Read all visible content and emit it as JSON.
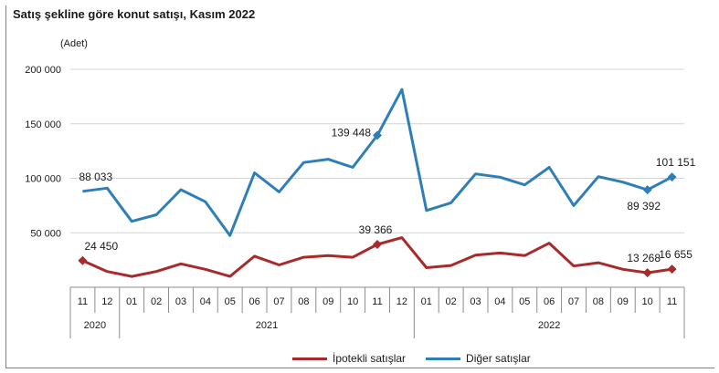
{
  "chart_data": {
    "type": "line",
    "title": "Satış şekline göre konut satışı, Kasım 2022",
    "ylabel": "(Adet)",
    "xlabel": "",
    "ylim": [
      0,
      200000
    ],
    "yticks": [
      {
        "value": 200000,
        "label": "200 000"
      },
      {
        "value": 150000,
        "label": "150 000"
      },
      {
        "value": 100000,
        "label": "100 000"
      },
      {
        "value": 50000,
        "label": "50 000"
      }
    ],
    "categories": [
      "11",
      "12",
      "01",
      "02",
      "03",
      "04",
      "05",
      "06",
      "07",
      "08",
      "09",
      "10",
      "11",
      "12",
      "01",
      "02",
      "03",
      "04",
      "05",
      "06",
      "07",
      "08",
      "09",
      "10",
      "11"
    ],
    "year_groups": [
      {
        "label": "2020",
        "start": 0,
        "end": 1
      },
      {
        "label": "2021",
        "start": 2,
        "end": 13
      },
      {
        "label": "2022",
        "start": 14,
        "end": 24
      }
    ],
    "series": [
      {
        "name": "İpotekli satışlar",
        "color": "#a82a2a",
        "values": [
          24450,
          14500,
          10000,
          14500,
          21500,
          16500,
          10000,
          28500,
          20500,
          27500,
          29000,
          27500,
          39366,
          45500,
          18000,
          20000,
          29500,
          31500,
          29000,
          40500,
          19500,
          22500,
          16500,
          13268,
          16655
        ],
        "marked": [
          0,
          12,
          23,
          24
        ],
        "labels": [
          {
            "index": 0,
            "text": "24 450"
          },
          {
            "index": 12,
            "text": "39 366"
          },
          {
            "index": 23,
            "text": "13 268"
          },
          {
            "index": 24,
            "text": "16 655"
          }
        ]
      },
      {
        "name": "Diğer satışlar",
        "color": "#2e7fb8",
        "values": [
          88033,
          91000,
          60500,
          66500,
          89500,
          78500,
          47500,
          105000,
          87500,
          114500,
          117500,
          110000,
          139448,
          181500,
          70500,
          77500,
          104000,
          101000,
          94000,
          110000,
          75000,
          101500,
          96500,
          89392,
          101151
        ],
        "marked": [
          12,
          23,
          24
        ],
        "labels": [
          {
            "index": 0,
            "text": "88 033"
          },
          {
            "index": 12,
            "text": "139 448"
          },
          {
            "index": 23,
            "text": "89 392"
          },
          {
            "index": 24,
            "text": "101 151"
          }
        ]
      }
    ],
    "grid": "horizontal",
    "legend": "bottom"
  }
}
